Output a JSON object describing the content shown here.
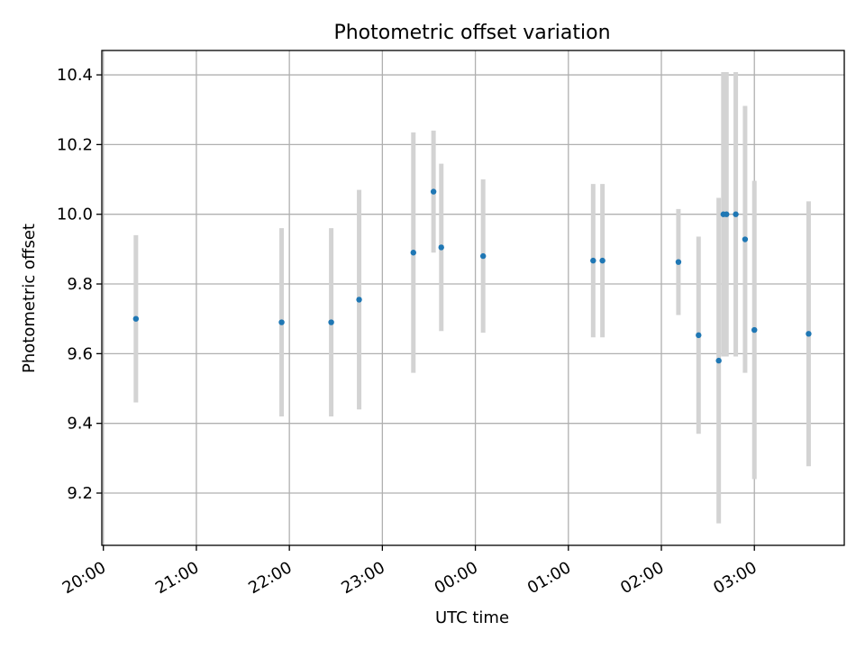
{
  "chart_data": {
    "type": "scatter",
    "title": "Photometric offset variation",
    "xlabel": "UTC time",
    "ylabel": "Photometric offset",
    "x_unit": "UTC hh:mm (20:00 day 1 to ~03:58 day 2)",
    "xlim": [
      "19:59",
      "03:58"
    ],
    "ylim": [
      9.05,
      10.47
    ],
    "grid": true,
    "x_ticks": [
      "20:00",
      "21:00",
      "22:00",
      "23:00",
      "00:00",
      "01:00",
      "02:00",
      "03:00"
    ],
    "y_ticks": [
      "9.2",
      "9.4",
      "9.6",
      "9.8",
      "10.0",
      "10.2",
      "10.4"
    ],
    "colors": {
      "points": "#1f77b4",
      "errorbars": "#d3d3d3",
      "grid": "#b0b0b0"
    },
    "series": [
      {
        "points": [
          {
            "x": "20:21",
            "y": 9.7,
            "err": 0.24
          },
          {
            "x": "21:55",
            "y": 9.69,
            "err": 0.27
          },
          {
            "x": "22:27",
            "y": 9.69,
            "err": 0.27
          },
          {
            "x": "22:45",
            "y": 9.755,
            "err": 0.315
          },
          {
            "x": "23:20",
            "y": 9.89,
            "err": 0.345
          },
          {
            "x": "23:33",
            "y": 10.065,
            "err": 0.175
          },
          {
            "x": "23:38",
            "y": 9.905,
            "err": 0.24
          },
          {
            "x": "00:05",
            "y": 9.88,
            "err": 0.22
          },
          {
            "x": "01:16",
            "y": 9.867,
            "err": 0.22
          },
          {
            "x": "01:22",
            "y": 9.867,
            "err": 0.22
          },
          {
            "x": "02:11",
            "y": 9.863,
            "err": 0.152
          },
          {
            "x": "02:24",
            "y": 9.653,
            "err": 0.283
          },
          {
            "x": "02:37",
            "y": 9.58,
            "err": 0.467
          },
          {
            "x": "02:40",
            "y": 10.0,
            "err": 0.408
          },
          {
            "x": "02:42",
            "y": 10.0,
            "err": 0.408
          },
          {
            "x": "02:48",
            "y": 10.0,
            "err": 0.408
          },
          {
            "x": "02:54",
            "y": 9.928,
            "err": 0.383
          },
          {
            "x": "03:00",
            "y": 9.668,
            "err": 0.428
          },
          {
            "x": "03:35",
            "y": 9.657,
            "err": 0.38
          }
        ]
      }
    ]
  }
}
